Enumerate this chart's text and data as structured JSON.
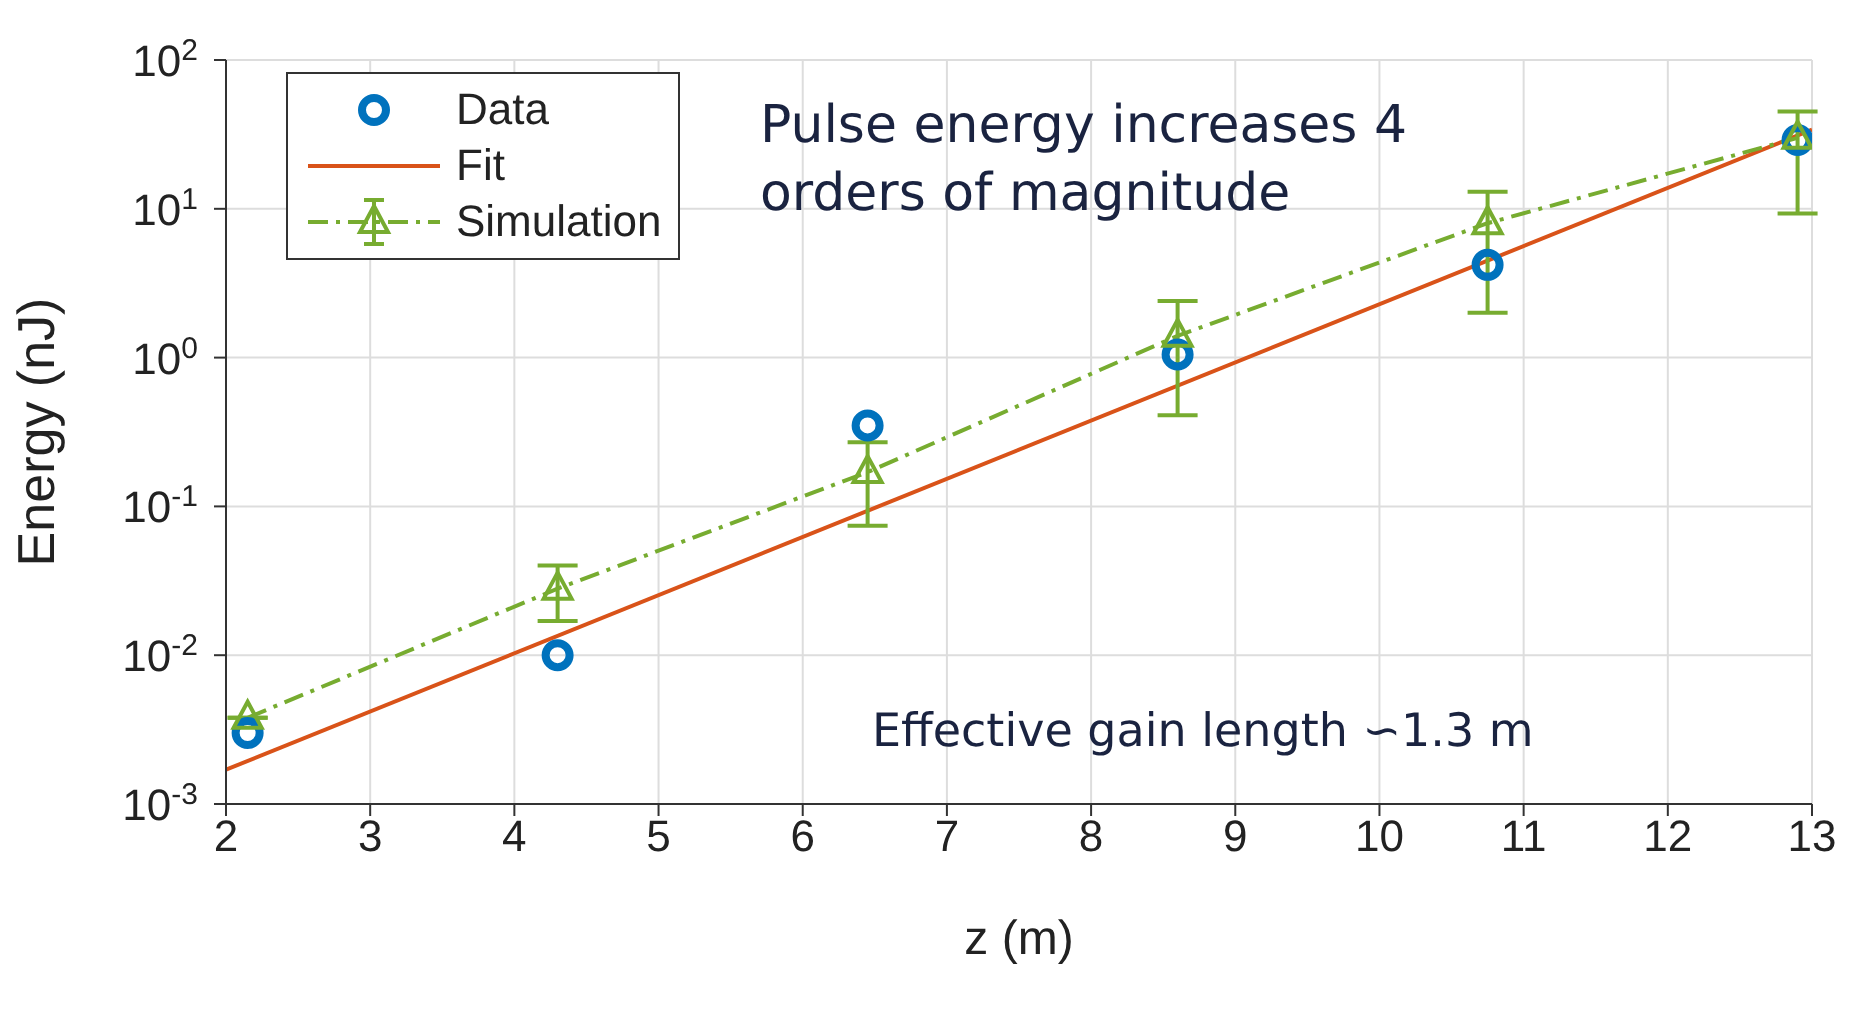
{
  "chart_data": {
    "type": "line",
    "xlabel": "z (m)",
    "ylabel": "Energy (nJ)",
    "log": "y",
    "grid": true,
    "legend": "top left",
    "xlim": [
      2,
      13
    ],
    "xticks": [
      2,
      3,
      4,
      5,
      6,
      7,
      8,
      9,
      10,
      11,
      12,
      13
    ],
    "ylim": [
      0.001,
      100
    ],
    "yticks": [
      {
        "value": 0.001,
        "label": "10$^{-3}$"
      },
      {
        "value": 0.01,
        "label": "10$^{-2}$"
      },
      {
        "value": 0.1,
        "label": "10$^{-1}$"
      },
      {
        "value": 1,
        "label": "10$^{0}$"
      },
      {
        "value": 10,
        "label": "10$^{1}$"
      },
      {
        "value": 100,
        "label": "10$^{2}$"
      }
    ],
    "series": [
      {
        "name": "Data",
        "type": "scatter",
        "color": "#0072bd",
        "marker": "circle",
        "x": [
          2.15,
          4.3,
          6.45,
          8.6,
          10.75,
          12.9
        ],
        "values": [
          0.003,
          0.01,
          0.35,
          1.05,
          4.2,
          29
        ]
      },
      {
        "name": "Fit",
        "color": "#d95319",
        "marker": "none",
        "line_style": "solid",
        "x": [
          2,
          13
        ],
        "values": [
          0.0017,
          34
        ]
      },
      {
        "name": "Simulation",
        "color": "#77ac30",
        "marker": "triangle",
        "line_style": "dashdot",
        "x": [
          2.15,
          4.3,
          6.45,
          8.6,
          10.75,
          12.9
        ],
        "values": [
          0.0038,
          0.028,
          0.17,
          1.4,
          8,
          30
        ],
        "errors": [
          null,
          [
            0.017,
            0.04
          ],
          [
            0.074,
            0.27
          ],
          [
            0.41,
            2.4
          ],
          [
            2,
            13
          ],
          [
            9.3,
            45
          ]
        ]
      }
    ],
    "annotations": [
      "Pulse energy increases 4 orders of magnitude",
      "Effective gain length ∽1.3 m"
    ]
  }
}
